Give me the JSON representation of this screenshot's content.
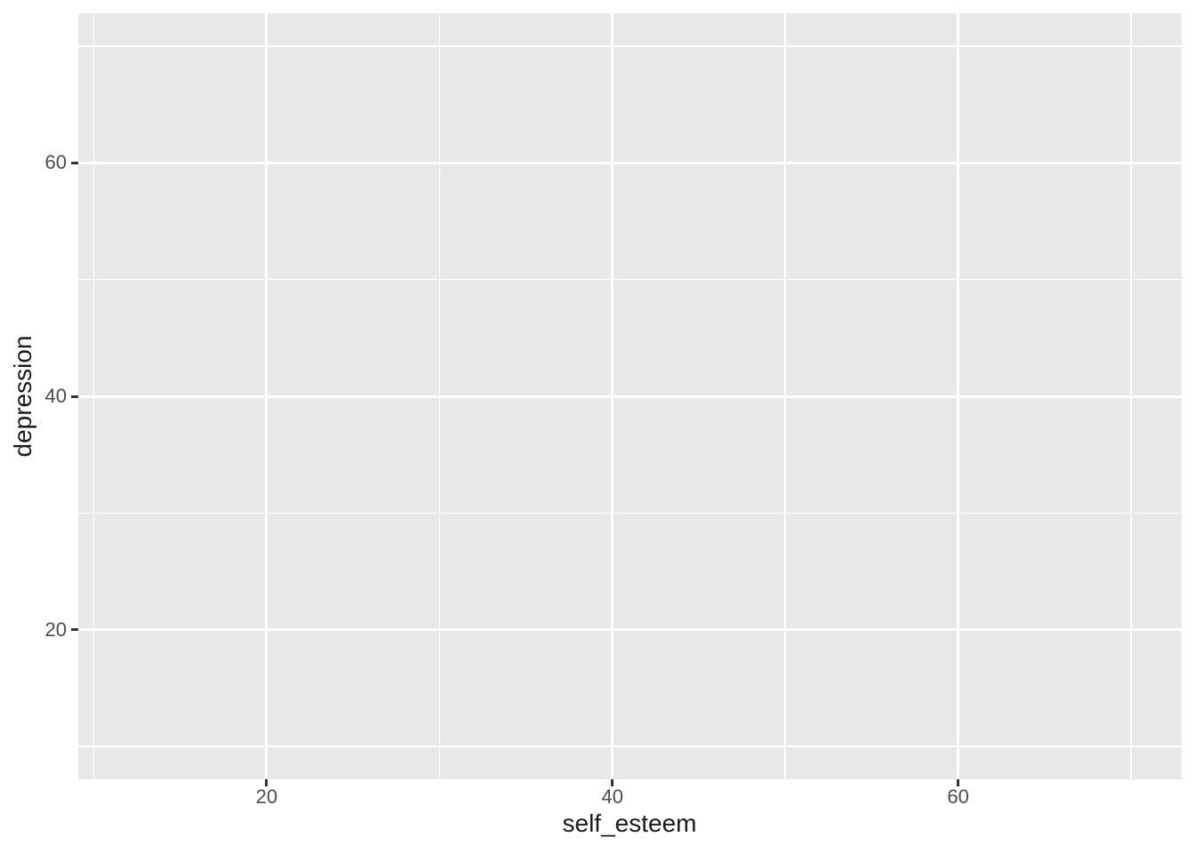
{
  "chart_data": {
    "type": "scatter",
    "title": "",
    "xlabel": "self_esteem",
    "ylabel": "depression",
    "x_axis": {
      "label": "self_esteem",
      "ticks": [
        20,
        40,
        60
      ],
      "tick_labels": [
        "20",
        "40",
        "60"
      ],
      "minor_ticks": [
        10,
        30,
        50,
        70
      ],
      "range": [
        9.1,
        72.93
      ]
    },
    "y_axis": {
      "label": "depression",
      "ticks": [
        20,
        40,
        60
      ],
      "tick_labels": [
        "20",
        "40",
        "60"
      ],
      "minor_ticks": [
        10,
        30,
        50,
        70
      ],
      "range": [
        7.2,
        72.8
      ]
    },
    "points": [],
    "grid": "major+minor",
    "legend": "none",
    "style": {
      "panel_bg": "#E8E8E8",
      "grid_color": "#FFFFFF",
      "tick_color": "#333333",
      "tick_label_color": "#4D4D4D",
      "axis_title_color": "#1A1A1A",
      "plot_bg": "#FFFFFF"
    }
  }
}
